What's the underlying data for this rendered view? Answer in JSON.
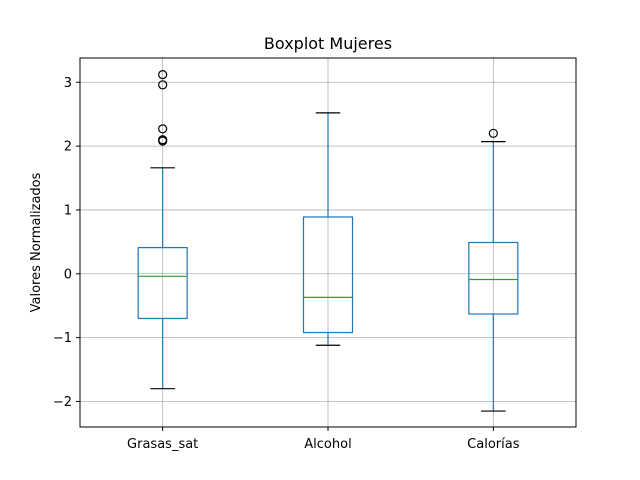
{
  "chart_data": {
    "type": "boxplot",
    "title": "Boxplot Mujeres",
    "xlabel": "",
    "ylabel": "Valores Normalizados",
    "ylim": [
      -2.4,
      3.38
    ],
    "yticks": [
      -2,
      -1,
      0,
      1,
      2,
      3
    ],
    "ytick_labels": [
      "−2",
      "−1",
      "0",
      "1",
      "2",
      "3"
    ],
    "grid": true,
    "categories": [
      "Grasas_sat",
      "Alcohol",
      "Calorías"
    ],
    "boxes": [
      {
        "label": "Grasas_sat",
        "whisker_low": -1.8,
        "q1": -0.7,
        "median": -0.04,
        "q3": 0.41,
        "whisker_high": 1.66,
        "outliers": [
          2.08,
          2.1,
          2.27,
          2.96,
          3.12
        ]
      },
      {
        "label": "Alcohol",
        "whisker_low": -1.12,
        "q1": -0.92,
        "median": -0.37,
        "q3": 0.89,
        "whisker_high": 2.52,
        "outliers": []
      },
      {
        "label": "Calorías",
        "whisker_low": -2.15,
        "q1": -0.63,
        "median": -0.09,
        "q3": 0.49,
        "whisker_high": 2.07,
        "outliers": [
          2.2
        ]
      }
    ],
    "colors": {
      "box": "#1f77b4",
      "median": "#2ca02c",
      "whisker_cap": "#000000",
      "grid": "#b0b0b0",
      "outlier": "#000000"
    }
  }
}
